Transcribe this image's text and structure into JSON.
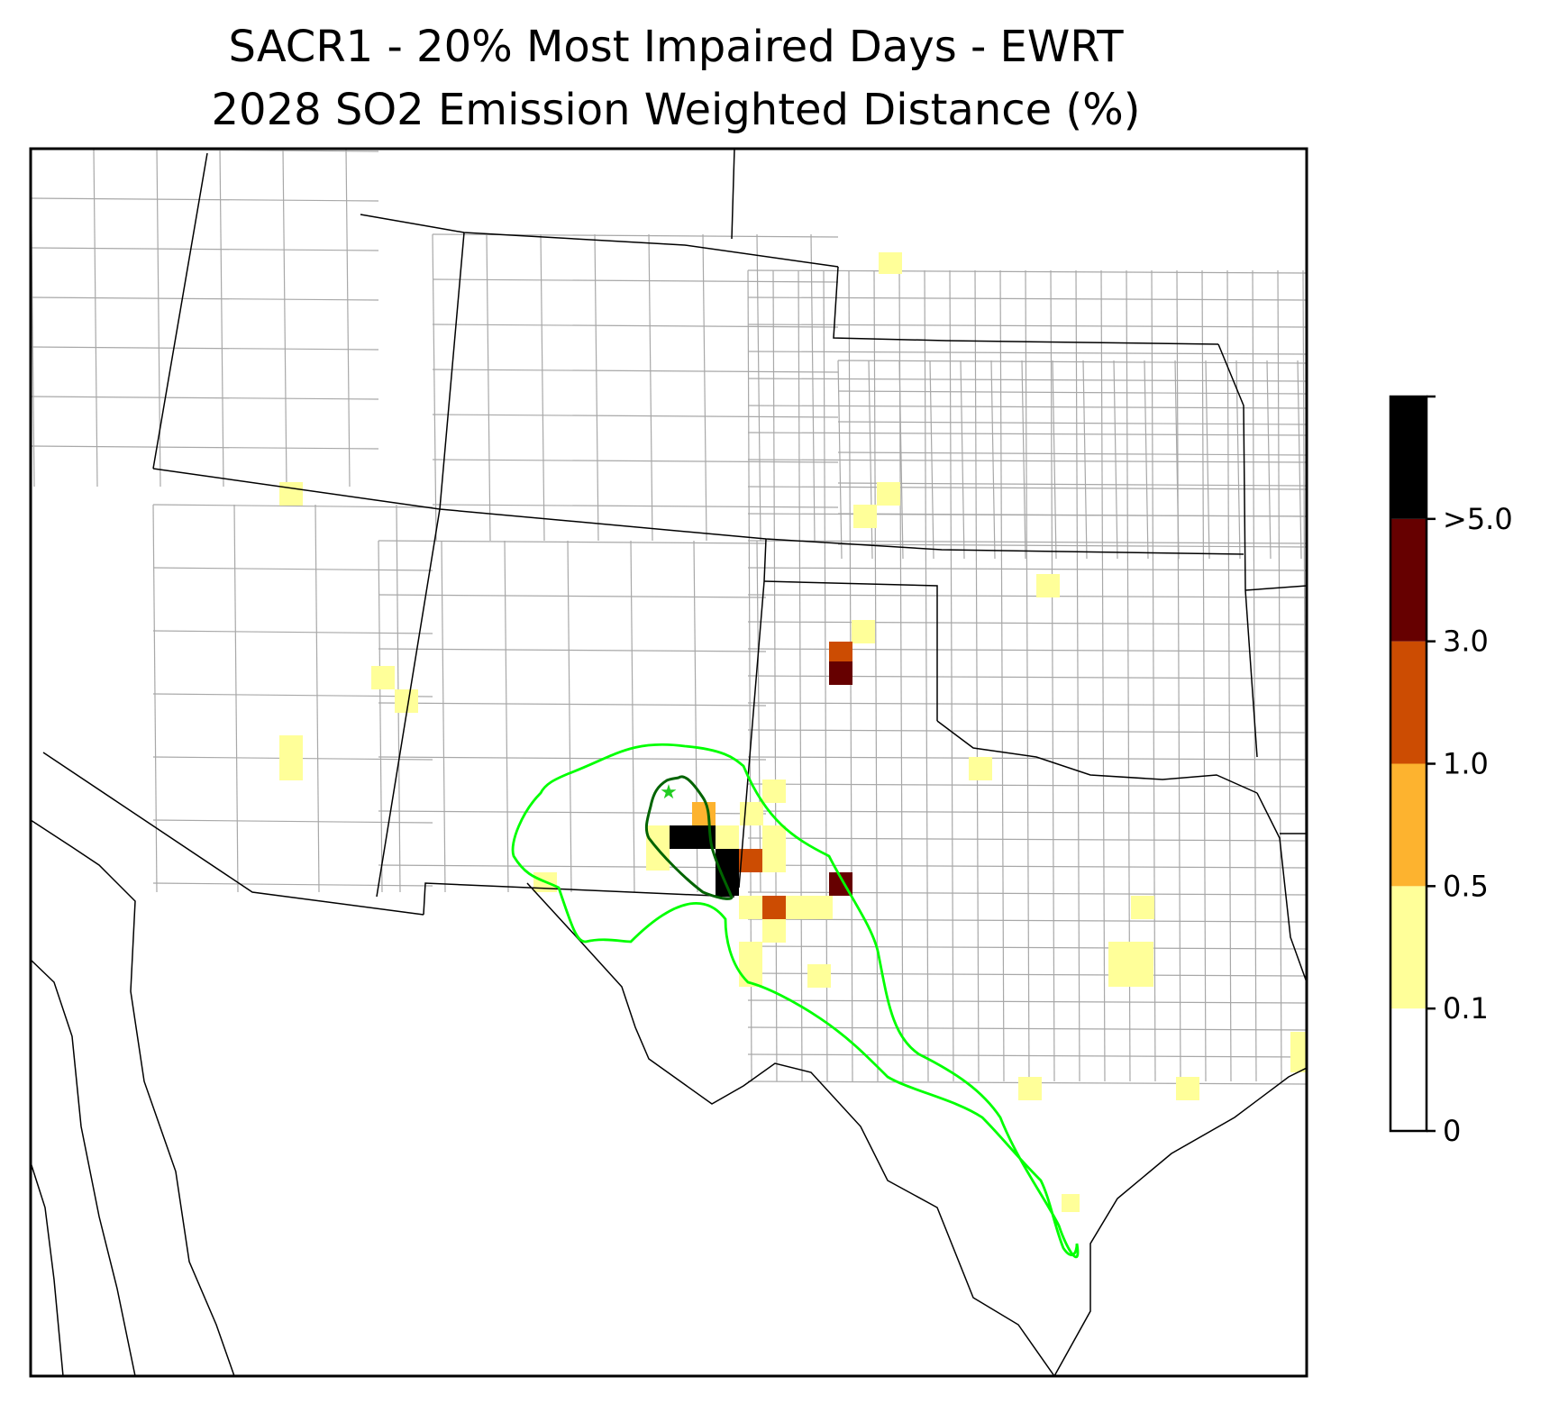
{
  "title_line1": "SACR1 - 20% Most Impaired Days - EWRT",
  "title_line2": "2028 SO2 Emission Weighted Distance (%)",
  "colors": {
    "state_border": "#000000",
    "county_border": "#a8a8a8",
    "trajectory_outer": "#00ff00",
    "trajectory_inner": "#006400",
    "site_marker": "#22cc22"
  },
  "colorbar": {
    "bins": [
      {
        "label": "0",
        "color": "#ffffff"
      },
      {
        "label": "0.1",
        "color": "#ffff99"
      },
      {
        "label": "0.5",
        "color": "#fdb32f"
      },
      {
        "label": "1.0",
        "color": "#cc4c02"
      },
      {
        "label": "3.0",
        "color": "#660000"
      },
      {
        "label": ">5.0",
        "color": "#000000"
      }
    ]
  },
  "site_marker_icon": "star-icon"
}
